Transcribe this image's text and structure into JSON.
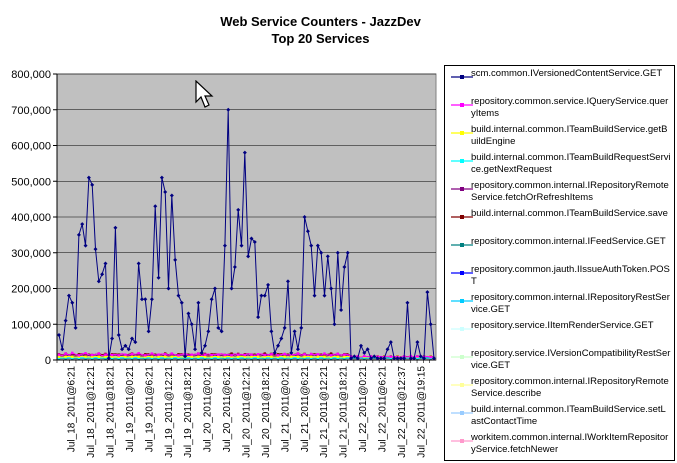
{
  "chart_data": {
    "type": "line",
    "title": "Web Service Counters - JazzDev",
    "subtitle": "Top 20 Services",
    "xlabel": "",
    "ylabel": "",
    "ylim": [
      0,
      800000
    ],
    "y_ticks": [
      "800,000",
      "700,000",
      "600,000",
      "500,000",
      "400,000",
      "300,000",
      "200,000",
      "100,000",
      "0"
    ],
    "y_tick_values": [
      800000,
      700000,
      600000,
      500000,
      400000,
      300000,
      200000,
      100000,
      0
    ],
    "x_tick_labels": [
      "Jul_18_2011@6:21",
      "Jul_18_2011@12:21",
      "Jul_18_2011@18:21",
      "Jul_19_2011@0:21",
      "Jul_19_2011@6:21",
      "Jul_19_2011@12:21",
      "Jul_19_2011@18:21",
      "Jul_20_2011@0:21",
      "Jul_20_2011@6:21",
      "Jul_20_2011@12:21",
      "Jul_20_2011@18:21",
      "Jul_21_2011@0:21",
      "Jul_21_2011@6:21",
      "Jul_21_2011@12:21",
      "Jul_21_2011@18:21",
      "Jul_22_2011@0:21",
      "Jul_22_2011@6:21",
      "Jul_22_2011@12:37",
      "Jul_22_2011@19:15"
    ],
    "grid": true,
    "plot_background": "#c0c0c0",
    "legend_position": "right",
    "series": [
      {
        "name": "scm.common.IVersionedContentService.GET",
        "color": "#000080",
        "values": [
          70000,
          30000,
          110000,
          180000,
          160000,
          90000,
          350000,
          380000,
          320000,
          510000,
          490000,
          310000,
          220000,
          240000,
          270000,
          5000,
          60000,
          370000,
          70000,
          30000,
          40000,
          30000,
          60000,
          50000,
          270000,
          170000,
          170000,
          80000,
          170000,
          430000,
          230000,
          510000,
          470000,
          200000,
          460000,
          280000,
          180000,
          160000,
          10000,
          130000,
          100000,
          30000,
          160000,
          20000,
          40000,
          80000,
          170000,
          200000,
          90000,
          80000,
          320000,
          700000,
          200000,
          260000,
          420000,
          320000,
          580000,
          290000,
          340000,
          330000,
          120000,
          180000,
          180000,
          210000,
          80000,
          20000,
          40000,
          60000,
          90000,
          220000,
          20000,
          80000,
          30000,
          90000,
          400000,
          360000,
          320000,
          180000,
          320000,
          300000,
          180000,
          290000,
          200000,
          100000,
          300000,
          140000,
          260000,
          300000,
          5000,
          10000,
          5000,
          40000,
          20000,
          30000,
          5000,
          10000,
          5000,
          5000,
          5000,
          30000,
          50000,
          5000,
          5000,
          5000,
          5000,
          160000,
          5000,
          5000,
          50000,
          10000,
          5000,
          190000,
          100000,
          5000
        ]
      },
      {
        "name": "repository.common.service.IQueryService.queryItems",
        "color": "#ff00ff",
        "values": [
          15000,
          12000,
          18000,
          14000,
          20000,
          16000,
          13000,
          17000,
          19000,
          15000,
          14000,
          16000,
          18000,
          12000,
          15000,
          17000,
          14000,
          16000,
          13000,
          18000,
          15000,
          14000,
          17000,
          16000,
          19000,
          15000,
          13000,
          16000,
          18000,
          14000,
          15000,
          17000,
          16000,
          14000,
          18000,
          15000,
          13000,
          16000,
          17000,
          14000,
          15000,
          16000,
          18000,
          13000,
          15000,
          17000,
          14000,
          16000,
          15000,
          18000,
          14000,
          16000,
          13000,
          17000,
          15000,
          16000,
          14000,
          18000,
          15000,
          13000,
          16000,
          17000,
          14000,
          15000,
          16000,
          18000,
          13000,
          15000,
          17000,
          14000,
          16000,
          15000,
          18000,
          14000,
          16000,
          13000,
          17000,
          15000,
          16000,
          14000,
          18000,
          15000,
          13000,
          16000,
          17000,
          14000,
          15000,
          16000,
          10000,
          9000,
          10000,
          8000,
          11000,
          9000,
          10000,
          8000,
          9000,
          10000,
          8000,
          11000,
          9000,
          10000,
          8000,
          9000,
          10000,
          8000,
          11000,
          9000,
          10000,
          8000,
          9000,
          10000,
          8000,
          9000
        ]
      },
      {
        "name": "build.internal.common.ITeamBuildService.getBuildEngine",
        "color": "#ffff00",
        "values": [
          9000,
          8000,
          9000,
          10000,
          9000,
          8000,
          9000,
          10000,
          9000,
          8000,
          9000,
          10000,
          9000,
          8000,
          9000,
          10000,
          9000,
          8000,
          9000,
          10000,
          9000,
          8000,
          9000,
          10000,
          9000,
          8000,
          9000,
          10000,
          9000,
          8000,
          9000,
          10000,
          9000,
          8000,
          9000,
          10000,
          9000,
          8000,
          9000,
          10000,
          9000,
          8000,
          9000,
          10000,
          9000,
          8000,
          9000,
          10000,
          9000,
          8000,
          9000,
          10000,
          9000,
          8000,
          9000,
          10000,
          9000,
          8000,
          9000,
          10000,
          9000,
          8000,
          9000,
          10000,
          9000,
          8000,
          9000,
          10000,
          9000,
          8000,
          9000,
          10000,
          9000,
          8000,
          9000,
          10000,
          9000,
          8000,
          9000,
          10000,
          9000,
          8000,
          9000,
          10000,
          9000,
          8000,
          9000,
          10000,
          9000,
          8000,
          9000,
          10000,
          9000,
          8000,
          9000,
          10000,
          9000,
          8000,
          9000,
          10000,
          9000,
          8000,
          9000,
          10000,
          9000,
          8000,
          9000,
          10000,
          9000,
          8000,
          9000,
          10000,
          9000,
          8000
        ]
      },
      {
        "name": "build.internal.common.ITeamBuildRequestService.getNextRequest",
        "color": "#00ffff",
        "values": [
          6000,
          6000,
          7000,
          6000,
          6000,
          7000,
          6000,
          6000,
          7000,
          6000,
          6000,
          7000,
          6000,
          6000,
          7000,
          6000,
          6000,
          7000,
          6000,
          6000,
          7000,
          6000,
          6000,
          7000,
          6000,
          6000,
          7000,
          6000,
          6000,
          7000,
          6000,
          6000,
          7000,
          6000,
          6000,
          7000,
          6000,
          6000,
          7000,
          6000,
          6000,
          7000,
          6000,
          6000,
          7000,
          6000,
          6000,
          7000,
          6000,
          6000,
          7000,
          6000,
          6000,
          7000,
          6000,
          6000,
          7000,
          6000,
          6000,
          7000,
          6000,
          6000,
          7000,
          6000,
          6000,
          7000,
          6000,
          6000,
          7000,
          6000,
          6000,
          7000,
          6000,
          6000,
          7000,
          6000,
          6000,
          7000,
          6000,
          6000,
          7000,
          6000,
          6000,
          7000,
          6000,
          6000,
          7000,
          6000,
          6000,
          7000,
          6000,
          6000,
          7000,
          6000,
          6000,
          7000,
          6000,
          6000,
          7000,
          6000,
          6000,
          7000,
          6000,
          6000,
          7000,
          6000,
          6000,
          7000,
          6000,
          6000,
          7000,
          6000,
          6000,
          7000
        ]
      },
      {
        "name": "repository.common.internal.IRepositoryRemoteService.fetchOrRefreshItems",
        "color": "#800080",
        "values": [
          12000,
          10000,
          14000,
          11000,
          13000,
          10000,
          12000,
          14000,
          11000,
          13000,
          10000,
          12000,
          14000,
          11000,
          13000,
          10000,
          12000,
          14000,
          11000,
          13000,
          10000,
          12000,
          14000,
          11000,
          13000,
          10000,
          12000,
          14000,
          11000,
          13000,
          10000,
          12000,
          14000,
          11000,
          13000,
          10000,
          12000,
          14000,
          11000,
          13000,
          10000,
          12000,
          14000,
          11000,
          13000,
          10000,
          12000,
          14000,
          11000,
          13000,
          10000,
          12000,
          14000,
          11000,
          13000,
          10000,
          12000,
          14000,
          11000,
          13000,
          10000,
          12000,
          14000,
          11000,
          13000,
          10000,
          12000,
          14000,
          11000,
          13000,
          10000,
          12000,
          14000,
          11000,
          13000,
          10000,
          12000,
          14000,
          11000,
          13000,
          10000,
          12000,
          14000,
          11000,
          13000,
          10000,
          12000,
          14000,
          8000,
          7000,
          8000,
          7000,
          8000,
          7000,
          8000,
          7000,
          8000,
          7000,
          8000,
          7000,
          8000,
          7000,
          8000,
          7000,
          8000,
          7000,
          8000,
          7000,
          8000,
          7000,
          8000,
          7000,
          8000,
          7000
        ]
      },
      {
        "name": "build.internal.common.ITeamBuildService.save",
        "color": "#800000",
        "values": [
          16000,
          14000,
          18000,
          15000,
          17000,
          14000,
          16000,
          18000,
          15000,
          17000,
          14000,
          16000,
          18000,
          15000,
          17000,
          14000,
          16000,
          18000,
          15000,
          17000,
          14000,
          16000,
          18000,
          15000,
          17000,
          14000,
          16000,
          18000,
          15000,
          17000,
          14000,
          16000,
          18000,
          15000,
          17000,
          14000,
          16000,
          18000,
          15000,
          17000,
          14000,
          16000,
          18000,
          15000,
          17000,
          14000,
          16000,
          18000,
          15000,
          17000,
          14000,
          16000,
          18000,
          15000,
          17000,
          14000,
          16000,
          18000,
          15000,
          17000,
          14000,
          16000,
          18000,
          15000,
          17000,
          14000,
          16000,
          18000,
          15000,
          17000,
          14000,
          16000,
          18000,
          15000,
          17000,
          14000,
          16000,
          18000,
          15000,
          17000,
          14000,
          16000,
          18000,
          15000,
          17000,
          14000,
          16000,
          18000,
          10000,
          9000,
          10000,
          9000,
          10000,
          9000,
          10000,
          9000,
          10000,
          9000,
          10000,
          9000,
          10000,
          9000,
          10000,
          9000,
          10000,
          9000,
          10000,
          9000,
          10000,
          9000,
          10000,
          9000,
          10000,
          9000
        ]
      },
      {
        "name": "repository.common.internal.IFeedService.GET",
        "color": "#008080",
        "values": [
          5000,
          5000,
          5000,
          5000,
          5000,
          5000,
          5000,
          5000,
          5000,
          5000,
          5000,
          5000,
          5000,
          5000,
          5000,
          5000,
          5000,
          5000,
          5000,
          5000,
          5000,
          5000,
          5000,
          5000,
          5000,
          5000,
          5000,
          5000,
          5000,
          5000,
          5000,
          5000,
          5000,
          5000,
          5000,
          5000,
          5000,
          5000,
          5000,
          5000,
          5000,
          5000,
          5000,
          5000,
          5000,
          5000,
          5000,
          5000,
          5000,
          5000,
          5000,
          5000,
          5000,
          5000,
          5000,
          5000,
          5000,
          5000,
          5000,
          5000,
          5000,
          5000,
          5000,
          5000,
          5000,
          5000,
          5000,
          5000,
          5000,
          5000,
          5000,
          5000,
          5000,
          5000,
          5000,
          5000,
          5000,
          5000,
          5000,
          5000,
          5000,
          5000,
          5000,
          5000,
          5000,
          5000,
          5000,
          5000,
          5000,
          5000,
          5000,
          5000,
          5000,
          5000,
          5000,
          5000,
          5000,
          5000,
          5000,
          5000,
          5000,
          5000,
          5000,
          5000,
          5000,
          5000,
          5000,
          5000,
          5000,
          5000,
          5000,
          5000,
          5000,
          5000
        ]
      },
      {
        "name": "repository.common.jauth.IIssueAuthToken.POST",
        "color": "#0000ff",
        "values": []
      },
      {
        "name": "repository.common.internal.IRepositoryRestService.GET",
        "color": "#00ccff",
        "values": []
      },
      {
        "name": "repository.service.IItemRenderService.GET",
        "color": "#ccffff",
        "values": []
      },
      {
        "name": "repository.service.IVersionCompatibilityRestService.GET",
        "color": "#ccffcc",
        "values": []
      },
      {
        "name": "repository.common.internal.IRepositoryRemoteService.describe",
        "color": "#ffff99",
        "values": []
      },
      {
        "name": "build.internal.common.ITeamBuildService.setLastContactTime",
        "color": "#99ccff",
        "values": []
      },
      {
        "name": "workitem.common.internal.IWorkItemRepositoryService.fetchNewer",
        "color": "#ff99cc",
        "values": []
      }
    ]
  },
  "legend_labels": {
    "l0": "scm.common.IVersionedContentService.GET",
    "l1": "repository.common.service.IQueryService.queryItems",
    "l2": "build.internal.common.ITeamBuildService.getBuildEngine",
    "l3": "build.internal.common.ITeamBuildRequestService.getNextRequest",
    "l4": "repository.common.internal.IRepositoryRemoteService.fetchOrRefreshItems",
    "l5": "build.internal.common.ITeamBuildService.save",
    "l6": "repository.common.internal.IFeedService.GET",
    "l7": "repository.common.jauth.IIssueAuthToken.POST",
    "l8": "repository.common.internal.IRepositoryRestService.GET",
    "l9": "repository.service.IItemRenderService.GET",
    "l10": "repository.service.IVersionCompatibilityRestService.GET",
    "l11": "repository.common.internal.IRepositoryRemoteService.describe",
    "l12": "build.internal.common.ITeamBuildService.setLastContactTime",
    "l13": "workitem.common.internal.IWorkItemRepositoryService.fetchNewer"
  }
}
